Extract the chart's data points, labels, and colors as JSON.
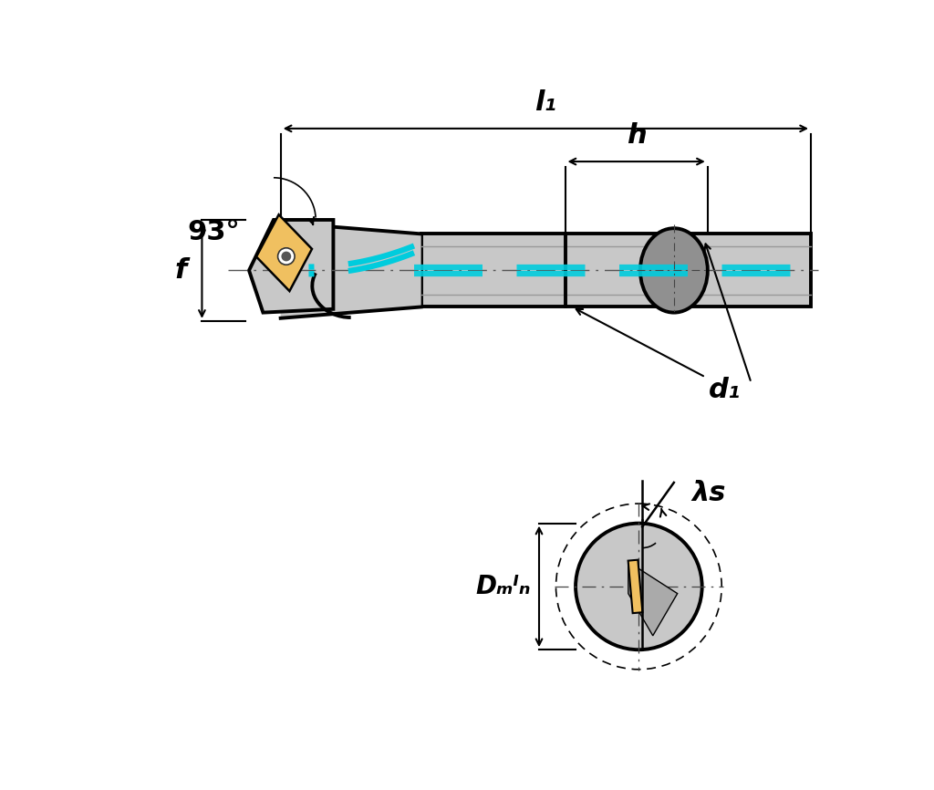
{
  "bg_color": "#ffffff",
  "line_color": "#000000",
  "tool_gray": "#c8c8c8",
  "tool_gray_dark": "#909090",
  "insert_yellow": "#f0c060",
  "cyan_dashed": "#00ccdd",
  "angle_label": "93°",
  "label_l1": "l₁",
  "label_h": "h",
  "label_f": "f",
  "label_d1": "d₁",
  "label_lambda_s": "λs",
  "label_dmin": "Dₘᴵₙ",
  "fig_width": 10.24,
  "fig_height": 8.66,
  "dpi": 100
}
